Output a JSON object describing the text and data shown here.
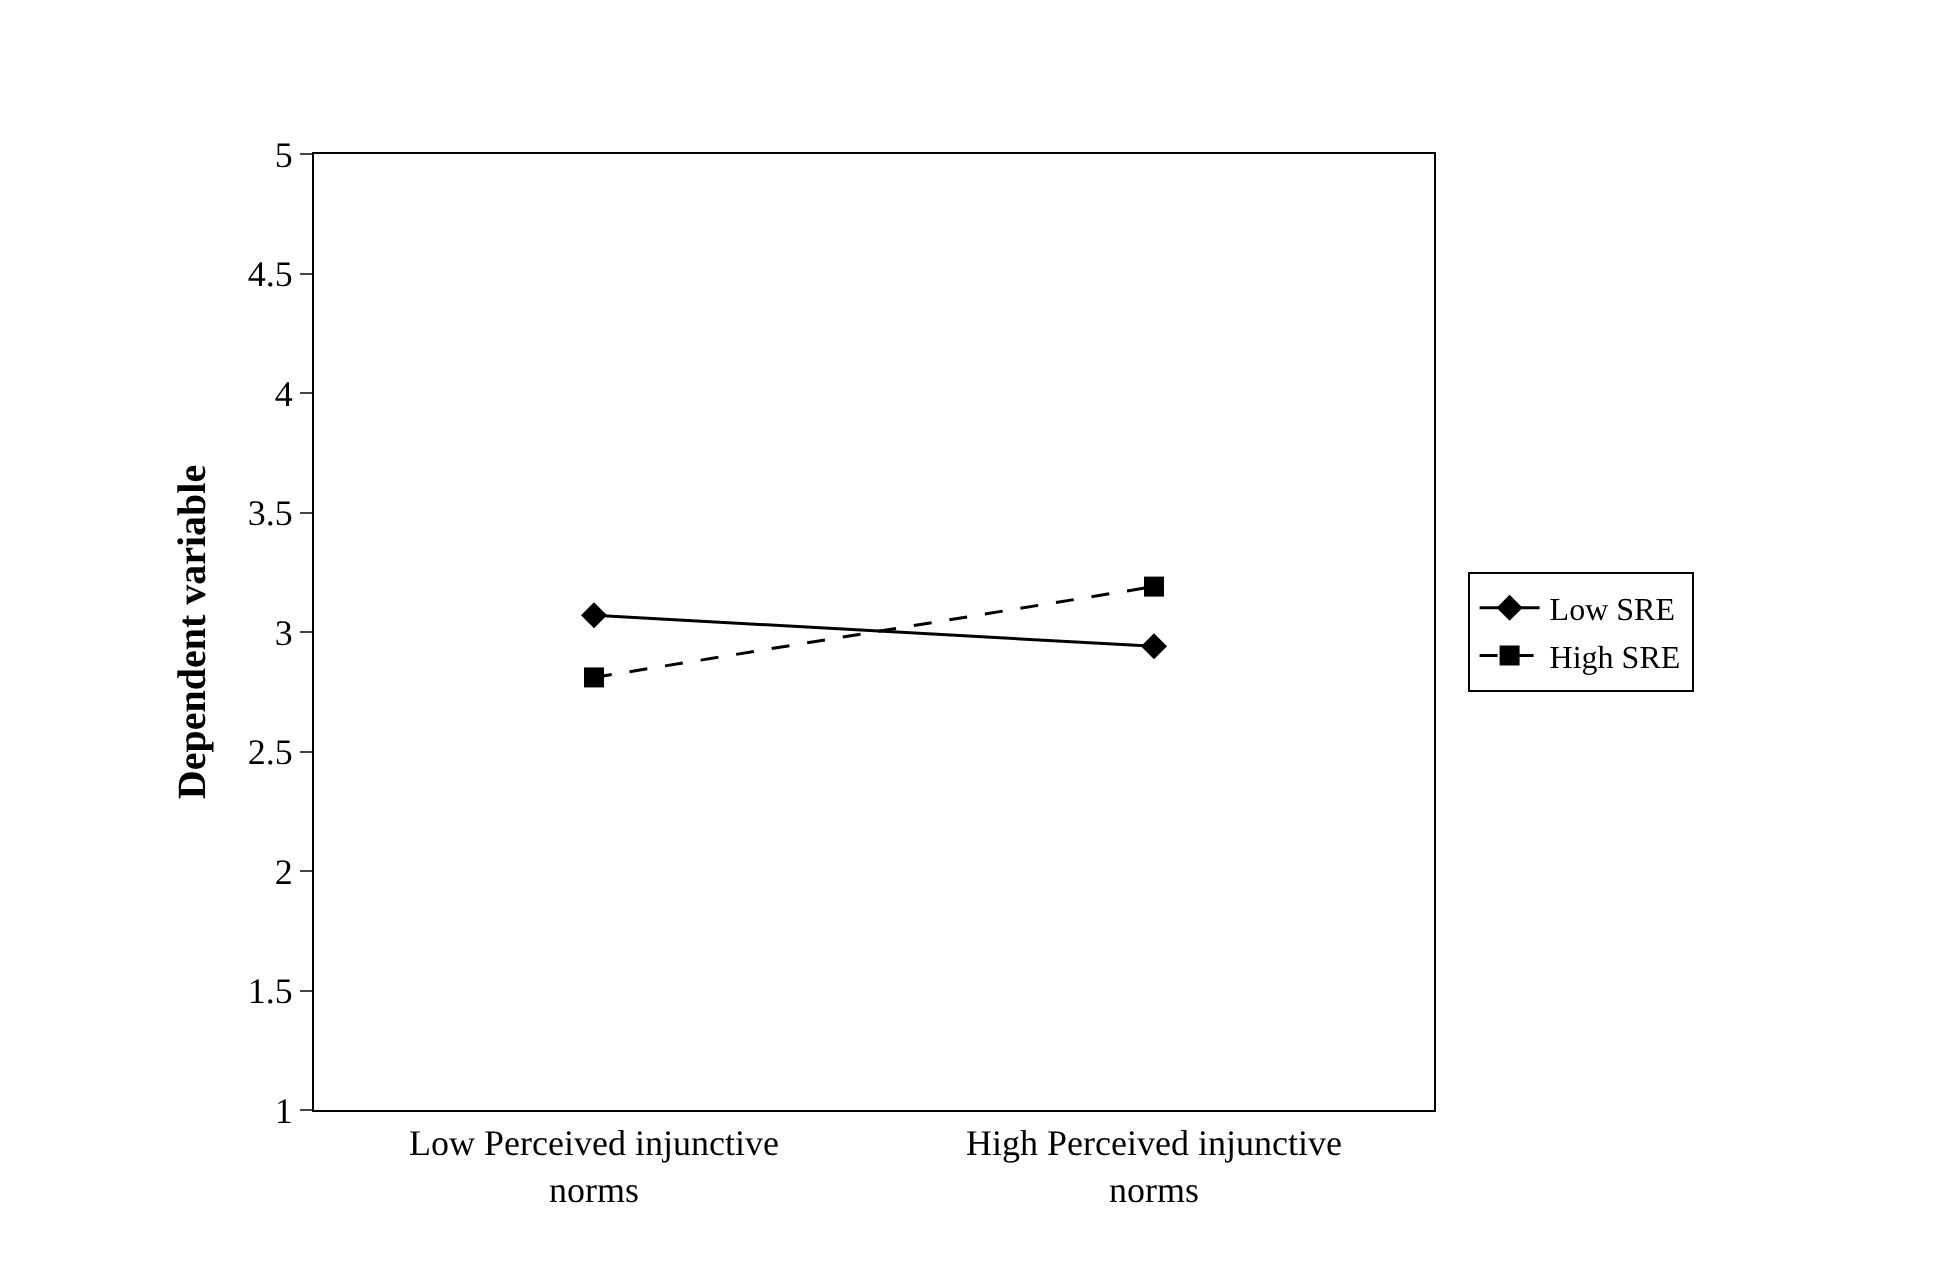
{
  "chart_data": {
    "type": "line",
    "ylabel": "Dependent variable",
    "categories": [
      "Low Perceived injunctive norms",
      "High Perceived injunctive norms"
    ],
    "series": [
      {
        "name": "Low SRE",
        "color": "#000000",
        "values": [
          3.07,
          2.94
        ],
        "marker": "diamond",
        "line_style": "solid"
      },
      {
        "name": "High SRE",
        "color": "#000000",
        "values": [
          2.81,
          3.19
        ],
        "marker": "square",
        "line_style": "dashed"
      }
    ],
    "ylim": [
      1,
      5
    ],
    "yticks": [
      1,
      1.5,
      2,
      2.5,
      3,
      3.5,
      4,
      4.5,
      5
    ],
    "legend": "right"
  }
}
